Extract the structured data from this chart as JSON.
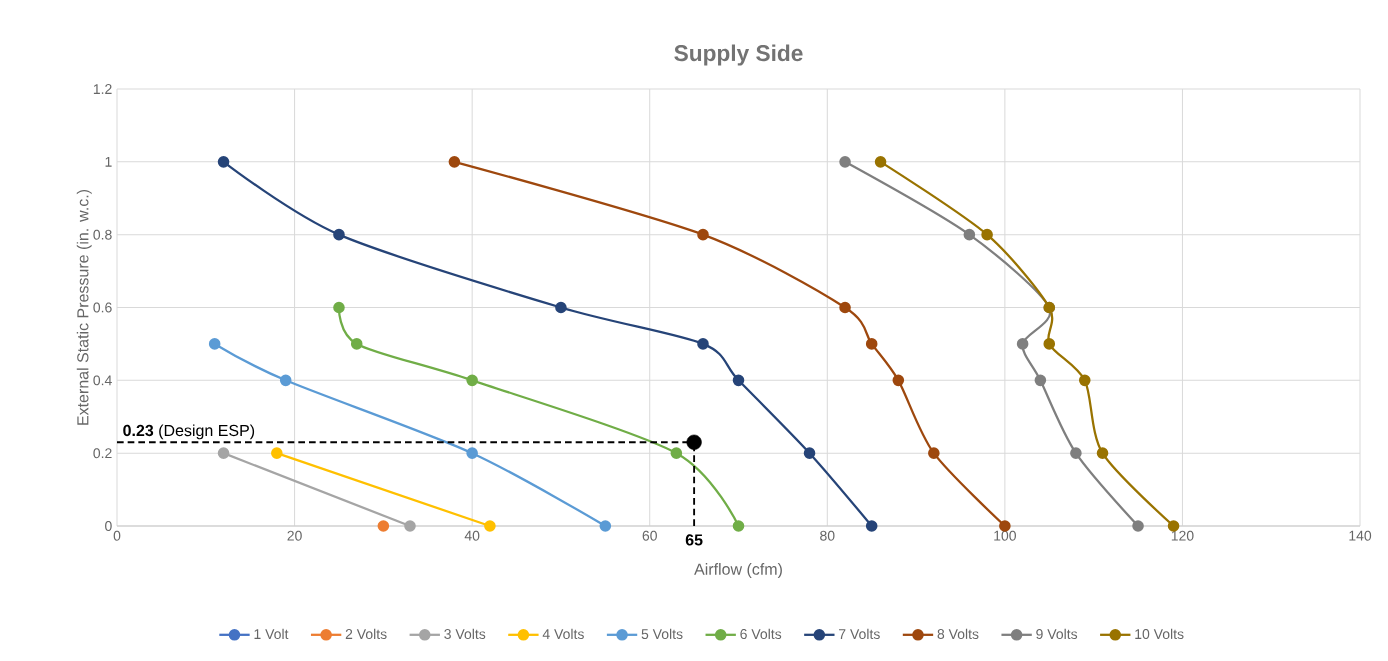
{
  "chart_data": {
    "type": "line",
    "title": "Supply Side",
    "xlabel": "Airflow (cfm)",
    "ylabel": "External Static Pressure (in. w.c.)",
    "xlim": [
      0,
      140
    ],
    "xticks": [
      0,
      20,
      40,
      60,
      80,
      100,
      120,
      140
    ],
    "ylim": [
      0,
      1.2
    ],
    "yticks": [
      0,
      0.2,
      0.4,
      0.6,
      0.8,
      1,
      1.2
    ],
    "grid": true,
    "legend": "bottom",
    "marker": "circle",
    "series": [
      {
        "name": "1 Volt",
        "color": "#4472c4"
      },
      {
        "name": "2 Volts",
        "color": "#ed7d31",
        "x": [
          30
        ],
        "values": [
          0
        ]
      },
      {
        "name": "3 Volts",
        "color": "#a5a5a5",
        "x": [
          12,
          33
        ],
        "values": [
          0.2,
          0
        ]
      },
      {
        "name": "4 Volts",
        "color": "#ffc000",
        "x": [
          18,
          42
        ],
        "values": [
          0.2,
          0
        ]
      },
      {
        "name": "5 Volts",
        "color": "#5b9bd5",
        "x": [
          11,
          19,
          40,
          55
        ],
        "values": [
          0.5,
          0.4,
          0.2,
          0
        ]
      },
      {
        "name": "6 Volts",
        "color": "#70ad47",
        "x": [
          25,
          27,
          40,
          63,
          70
        ],
        "values": [
          0.6,
          0.5,
          0.4,
          0.2,
          0
        ]
      },
      {
        "name": "7 Volts",
        "color": "#264478",
        "x": [
          12,
          25,
          50,
          66,
          70,
          78,
          85
        ],
        "values": [
          1,
          0.8,
          0.6,
          0.5,
          0.4,
          0.2,
          0
        ]
      },
      {
        "name": "8 Volts",
        "color": "#9e480e",
        "x": [
          38,
          66,
          82,
          85,
          88,
          92,
          100
        ],
        "values": [
          1,
          0.8,
          0.6,
          0.5,
          0.4,
          0.2,
          0
        ]
      },
      {
        "name": "9 Volts",
        "color": "#7f7f7f",
        "x": [
          82,
          96,
          105,
          102,
          104,
          108,
          115
        ],
        "values": [
          1,
          0.8,
          0.6,
          0.5,
          0.4,
          0.2,
          0
        ]
      },
      {
        "name": "10 Volts",
        "color": "#997300",
        "x": [
          86,
          98,
          105,
          105,
          109,
          111,
          119
        ],
        "values": [
          1,
          0.8,
          0.6,
          0.5,
          0.4,
          0.2,
          0
        ]
      },
      {
        "type": "scatter",
        "color": "#000000",
        "x": [
          65
        ],
        "values": [
          0.23
        ]
      }
    ],
    "ref_lines": [
      {
        "axis": "y",
        "value": 0.23,
        "label": "**0.23** (Design ESP)",
        "color": "#000000",
        "line_style": "dashed"
      },
      {
        "axis": "x",
        "value": 65,
        "label": "**65**",
        "color": "#000000",
        "line_style": "dashed"
      }
    ]
  }
}
